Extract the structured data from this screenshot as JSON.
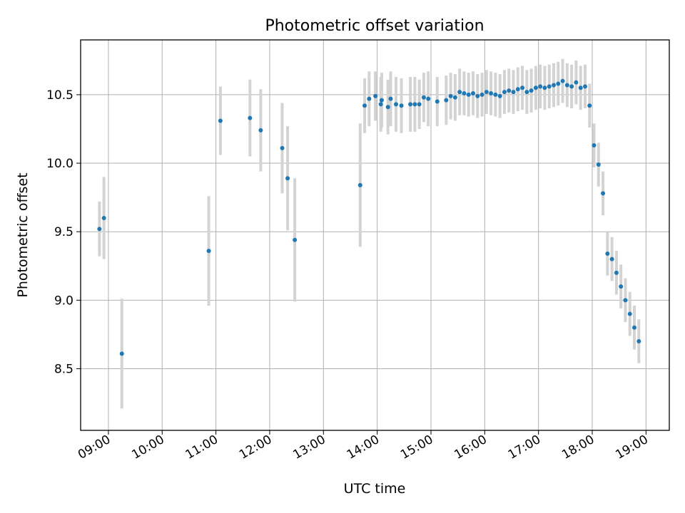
{
  "chart_data": {
    "type": "scatter",
    "title": "Photometric offset variation",
    "xlabel": "UTC time",
    "ylabel": "Photometric offset",
    "xlim": [
      "08:29",
      "19:26"
    ],
    "ylim": [
      8.05,
      10.9
    ],
    "grid": true,
    "x_ticks": [
      "09:00",
      "10:00",
      "11:00",
      "12:00",
      "13:00",
      "14:00",
      "15:00",
      "16:00",
      "17:00",
      "18:00",
      "19:00"
    ],
    "y_ticks": [
      "8.5",
      "9.0",
      "9.5",
      "10.0",
      "10.5"
    ],
    "colors": {
      "points": "#1f77b4",
      "errorbars": "#d3d3d3",
      "grid": "#b0b0b0"
    },
    "series": [
      {
        "x": [
          "08:50",
          "08:55",
          "09:15",
          "10:52",
          "11:05",
          "11:38",
          "11:50",
          "12:14",
          "12:20",
          "12:28",
          "13:41",
          "13:46",
          "13:51",
          "13:58",
          "14:04",
          "14:05",
          "14:12",
          "14:15",
          "14:21",
          "14:27",
          "14:37",
          "14:42",
          "14:47",
          "14:52",
          "14:57",
          "15:07",
          "15:17",
          "15:22",
          "15:27",
          "15:32",
          "15:37",
          "15:42",
          "15:47",
          "15:52",
          "15:57",
          "16:02",
          "16:07",
          "16:12",
          "16:17",
          "16:22",
          "16:27",
          "16:32",
          "16:37",
          "16:42",
          "16:47",
          "16:52",
          "16:57",
          "17:02",
          "17:07",
          "17:12",
          "17:17",
          "17:22",
          "17:27",
          "17:32",
          "17:37",
          "17:42",
          "17:47",
          "17:52",
          "17:57",
          "18:02",
          "18:07",
          "18:12",
          "18:17",
          "18:22",
          "18:27",
          "18:32",
          "18:37",
          "18:42",
          "18:47",
          "18:52"
        ],
        "y": [
          9.52,
          9.6,
          8.61,
          9.36,
          10.31,
          10.33,
          10.24,
          10.11,
          9.89,
          9.44,
          9.84,
          10.42,
          10.47,
          10.49,
          10.43,
          10.46,
          10.41,
          10.47,
          10.43,
          10.42,
          10.43,
          10.43,
          10.43,
          10.48,
          10.47,
          10.45,
          10.46,
          10.49,
          10.48,
          10.52,
          10.51,
          10.5,
          10.51,
          10.49,
          10.5,
          10.52,
          10.51,
          10.5,
          10.49,
          10.52,
          10.53,
          10.52,
          10.54,
          10.55,
          10.52,
          10.53,
          10.55,
          10.56,
          10.55,
          10.56,
          10.57,
          10.58,
          10.6,
          10.57,
          10.56,
          10.59,
          10.55,
          10.56,
          10.42,
          10.13,
          9.99,
          9.78,
          9.34,
          9.3,
          9.2,
          9.1,
          9.0,
          8.9,
          8.8,
          8.7
        ],
        "err": [
          0.2,
          0.3,
          0.4,
          0.4,
          0.25,
          0.28,
          0.3,
          0.33,
          0.38,
          0.45,
          0.45,
          0.2,
          0.2,
          0.18,
          0.2,
          0.2,
          0.2,
          0.2,
          0.2,
          0.2,
          0.2,
          0.2,
          0.18,
          0.18,
          0.2,
          0.18,
          0.18,
          0.17,
          0.17,
          0.17,
          0.16,
          0.16,
          0.16,
          0.16,
          0.16,
          0.16,
          0.16,
          0.16,
          0.16,
          0.16,
          0.16,
          0.16,
          0.16,
          0.16,
          0.16,
          0.16,
          0.16,
          0.16,
          0.16,
          0.16,
          0.16,
          0.16,
          0.16,
          0.16,
          0.16,
          0.16,
          0.16,
          0.16,
          0.16,
          0.16,
          0.16,
          0.16,
          0.16,
          0.16,
          0.16,
          0.16,
          0.16,
          0.16,
          0.16,
          0.16
        ]
      }
    ]
  }
}
